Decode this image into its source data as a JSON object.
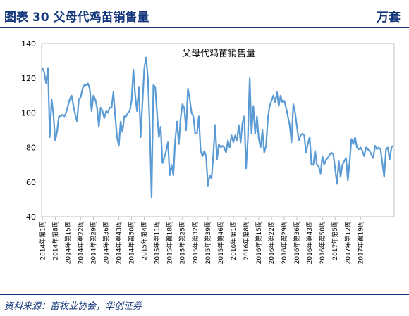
{
  "header": {
    "title": "图表 30    父母代鸡苗销售量",
    "unit": "万套"
  },
  "source": "资料来源：畜牧业协会，华创证券",
  "colors": {
    "header_text": "#12357a",
    "series_line": "#5b9bd5"
  },
  "chart_data": {
    "type": "line",
    "title": "父母代鸡苗销售量",
    "ylabel": "",
    "xlabel": "",
    "ylim": [
      40,
      140
    ],
    "yticks": [
      40,
      60,
      80,
      100,
      120,
      140
    ],
    "grid": false,
    "legend": "none",
    "xtick_labels": [
      "2014年第1周",
      "2014年第8周",
      "2014年第15周",
      "2014年第22周",
      "2014年第29周",
      "2014年第36周",
      "2014年第43周",
      "2014年第50周",
      "2015年第4周",
      "2015年第11周",
      "2015年第18周",
      "2015年第25周",
      "2015年第32周",
      "2015年第39周",
      "2015年第46周",
      "2016年第1周",
      "2016年第8周",
      "2016年第15周",
      "2016年第22周",
      "2016年第29周",
      "2016年第36周",
      "2016年第43周",
      "2016年第50周",
      "2017年第5周",
      "2017年第12周",
      "2017年第19周"
    ],
    "series": [
      {
        "values": [
          126,
          123,
          117,
          126,
          86,
          108,
          99,
          84,
          89,
          98,
          98,
          99,
          98,
          100,
          104,
          108,
          110,
          104,
          99,
          95,
          108,
          109,
          114,
          116,
          116,
          117,
          114,
          101,
          110,
          108,
          103,
          92,
          103,
          101,
          97,
          101,
          100,
          103,
          103,
          112,
          98,
          86,
          81,
          95,
          89,
          98,
          98,
          100,
          101,
          107,
          125,
          110,
          101,
          115,
          86,
          106,
          126,
          132,
          120,
          92,
          51,
          116,
          115,
          100,
          86,
          92,
          71,
          74,
          78,
          83,
          64,
          70,
          64,
          84,
          95,
          82,
          97,
          105,
          103,
          90,
          114,
          108,
          100,
          98,
          88,
          88,
          98,
          78,
          75,
          78,
          75,
          58,
          64,
          62,
          76,
          93,
          73,
          82,
          80,
          81,
          80,
          77,
          84,
          80,
          87,
          83,
          87,
          84,
          93,
          83,
          94,
          98,
          68,
          85,
          120,
          88,
          104,
          88,
          98,
          85,
          80,
          90,
          77,
          81,
          97,
          104,
          107,
          110,
          106,
          112,
          104,
          110,
          106,
          107,
          103,
          98,
          93,
          83,
          105,
          100,
          92,
          84,
          87,
          88,
          87,
          77,
          82,
          86,
          70,
          70,
          78,
          70,
          69,
          65,
          75,
          70,
          73,
          74,
          76,
          77,
          76,
          68,
          59,
          72,
          63,
          70,
          72,
          74,
          61,
          72,
          85,
          82,
          86,
          80,
          79,
          80,
          78,
          75,
          80,
          79,
          78,
          76,
          74,
          81,
          79,
          80,
          79,
          71,
          63,
          79,
          80,
          73,
          80,
          81
        ]
      }
    ]
  }
}
